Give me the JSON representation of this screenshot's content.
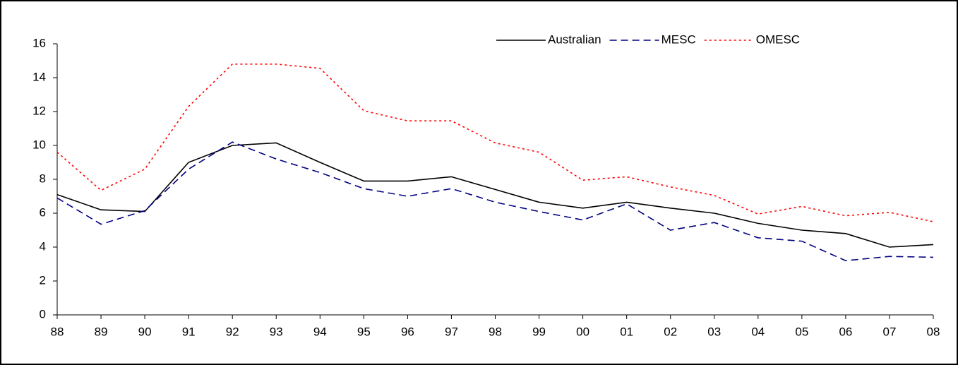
{
  "chart_data": {
    "type": "line",
    "categories": [
      "88",
      "89",
      "90",
      "91",
      "92",
      "93",
      "94",
      "95",
      "96",
      "97",
      "98",
      "99",
      "00",
      "01",
      "02",
      "03",
      "04",
      "05",
      "06",
      "07",
      "08"
    ],
    "series": [
      {
        "name": "Australian",
        "color": "#000000",
        "dash": "solid",
        "values": [
          7.1,
          6.2,
          6.1,
          9.0,
          10.0,
          10.15,
          9.0,
          7.9,
          7.9,
          8.15,
          7.4,
          6.65,
          6.3,
          6.65,
          6.3,
          6.0,
          5.4,
          5.0,
          4.8,
          4.0,
          4.15
        ]
      },
      {
        "name": "MESC",
        "color": "#000080",
        "dash": "dashed",
        "values": [
          6.9,
          5.35,
          6.15,
          8.6,
          10.2,
          9.2,
          8.4,
          7.45,
          7.0,
          7.45,
          6.65,
          6.1,
          5.6,
          6.55,
          5.0,
          5.45,
          4.55,
          4.35,
          3.2,
          3.45,
          3.4
        ]
      },
      {
        "name": "OMESC",
        "color": "#ff0000",
        "dash": "dotted",
        "values": [
          9.6,
          7.35,
          8.6,
          12.3,
          14.8,
          14.8,
          14.55,
          12.05,
          11.45,
          11.45,
          10.15,
          9.6,
          7.95,
          8.15,
          7.55,
          7.05,
          5.95,
          6.4,
          5.85,
          6.05,
          5.5
        ]
      }
    ],
    "ylim": [
      0,
      16
    ],
    "yticks": [
      0,
      2,
      4,
      6,
      8,
      10,
      12,
      14,
      16
    ],
    "grid": false,
    "legend": "top-right"
  }
}
